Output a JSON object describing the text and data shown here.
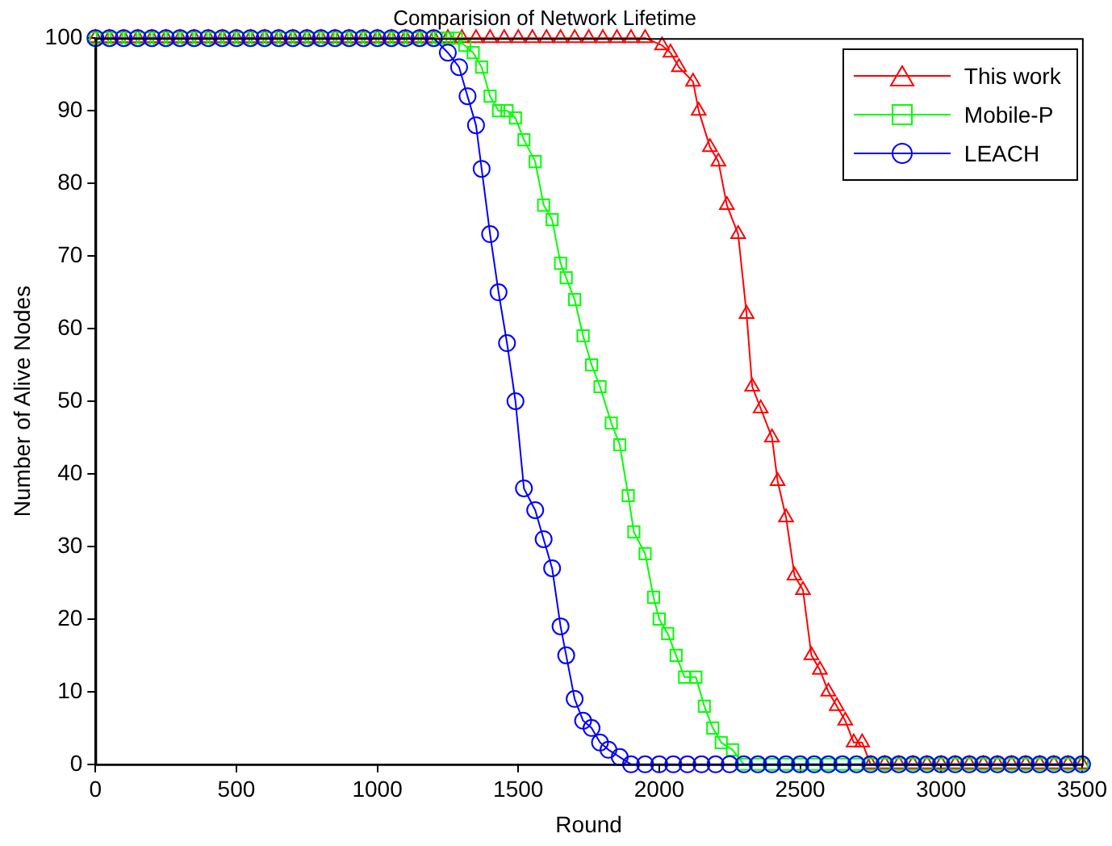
{
  "chart_data": {
    "type": "line",
    "title": "Comparision of Network Lifetime",
    "xlabel": "Round",
    "ylabel": "Number of Alive Nodes",
    "xlim": [
      0,
      3500
    ],
    "xticks": [
      0,
      500,
      1000,
      1500,
      2000,
      2500,
      3000,
      3500
    ],
    "ylim": [
      0,
      100
    ],
    "yticks": [
      0,
      10,
      20,
      30,
      40,
      50,
      60,
      70,
      80,
      90,
      100
    ],
    "grid": false,
    "legend": "top right",
    "line_style": "solid",
    "series": [
      {
        "name": "This work",
        "color": "#ff0000",
        "marker": "triangle",
        "x": [
          0,
          50,
          100,
          150,
          200,
          250,
          300,
          350,
          400,
          450,
          500,
          550,
          600,
          650,
          700,
          750,
          800,
          850,
          900,
          950,
          1000,
          1050,
          1100,
          1150,
          1200,
          1250,
          1300,
          1350,
          1400,
          1450,
          1500,
          1550,
          1600,
          1650,
          1700,
          1750,
          1800,
          1850,
          1900,
          1950,
          2010,
          2040,
          2070,
          2120,
          2140,
          2180,
          2210,
          2240,
          2280,
          2310,
          2330,
          2360,
          2400,
          2420,
          2450,
          2480,
          2510,
          2540,
          2570,
          2600,
          2630,
          2660,
          2690,
          2720,
          2750,
          2800,
          2850,
          2900,
          2950,
          3000,
          3050,
          3100,
          3150,
          3200,
          3250,
          3300,
          3350,
          3400,
          3450,
          3500
        ],
        "values": [
          100,
          100,
          100,
          100,
          100,
          100,
          100,
          100,
          100,
          100,
          100,
          100,
          100,
          100,
          100,
          100,
          100,
          100,
          100,
          100,
          100,
          100,
          100,
          100,
          100,
          100,
          100,
          100,
          100,
          100,
          100,
          100,
          100,
          100,
          100,
          100,
          100,
          100,
          100,
          100,
          99,
          98,
          96,
          94,
          90,
          85,
          83,
          77,
          73,
          62,
          52,
          49,
          45,
          39,
          34,
          26,
          24,
          15,
          13,
          10,
          8,
          6,
          3,
          3,
          0,
          0,
          0,
          0,
          0,
          0,
          0,
          0,
          0,
          0,
          0,
          0,
          0,
          0,
          0,
          0
        ]
      },
      {
        "name": "Mobile-P",
        "color": "#00ff00",
        "marker": "square",
        "x": [
          0,
          25,
          75,
          125,
          175,
          225,
          275,
          325,
          375,
          425,
          475,
          525,
          575,
          625,
          675,
          725,
          775,
          825,
          875,
          925,
          975,
          1025,
          1075,
          1125,
          1175,
          1225,
          1250,
          1280,
          1310,
          1340,
          1370,
          1400,
          1430,
          1460,
          1490,
          1520,
          1560,
          1590,
          1620,
          1650,
          1670,
          1700,
          1730,
          1760,
          1790,
          1830,
          1860,
          1890,
          1910,
          1950,
          1980,
          2000,
          2030,
          2060,
          2090,
          2130,
          2160,
          2190,
          2220,
          2260,
          2300,
          2350,
          2400,
          2450,
          2500,
          2550,
          2600,
          2650,
          2700,
          2750,
          2800,
          2850,
          2900,
          2950,
          3000,
          3050,
          3100,
          3150,
          3200,
          3250,
          3300,
          3350,
          3400,
          3450,
          3500
        ],
        "values": [
          100,
          100,
          100,
          100,
          100,
          100,
          100,
          100,
          100,
          100,
          100,
          100,
          100,
          100,
          100,
          100,
          100,
          100,
          100,
          100,
          100,
          100,
          100,
          100,
          100,
          100,
          100,
          100,
          99,
          98,
          96,
          92,
          90,
          90,
          89,
          86,
          83,
          77,
          75,
          69,
          67,
          64,
          59,
          55,
          52,
          47,
          44,
          37,
          32,
          29,
          23,
          20,
          18,
          15,
          12,
          12,
          8,
          5,
          3,
          2,
          0,
          0,
          0,
          0,
          0,
          0,
          0,
          0,
          0,
          0,
          0,
          0,
          0,
          0,
          0,
          0,
          0,
          0,
          0,
          0,
          0,
          0,
          0,
          0,
          0
        ]
      },
      {
        "name": "LEACH",
        "color": "#0000ff",
        "marker": "circle",
        "x": [
          0,
          50,
          100,
          150,
          200,
          250,
          300,
          350,
          400,
          450,
          500,
          550,
          600,
          650,
          700,
          750,
          800,
          850,
          900,
          950,
          1000,
          1050,
          1100,
          1150,
          1200,
          1250,
          1290,
          1320,
          1350,
          1370,
          1400,
          1430,
          1460,
          1490,
          1520,
          1560,
          1590,
          1620,
          1650,
          1670,
          1700,
          1730,
          1760,
          1790,
          1820,
          1860,
          1900,
          1950,
          2000,
          2050,
          2100,
          2150,
          2200,
          2250,
          2300,
          2350,
          2400,
          2450,
          2500,
          2550,
          2600,
          2650,
          2700,
          2750,
          2800,
          2850,
          2900,
          2950,
          3000,
          3050,
          3100,
          3150,
          3200,
          3250,
          3300,
          3350,
          3400,
          3450,
          3500
        ],
        "values": [
          100,
          100,
          100,
          100,
          100,
          100,
          100,
          100,
          100,
          100,
          100,
          100,
          100,
          100,
          100,
          100,
          100,
          100,
          100,
          100,
          100,
          100,
          100,
          100,
          100,
          98,
          96,
          92,
          88,
          82,
          73,
          65,
          58,
          50,
          38,
          35,
          31,
          27,
          19,
          15,
          9,
          6,
          5,
          3,
          2,
          1,
          0,
          0,
          0,
          0,
          0,
          0,
          0,
          0,
          0,
          0,
          0,
          0,
          0,
          0,
          0,
          0,
          0,
          0,
          0,
          0,
          0,
          0,
          0,
          0,
          0,
          0,
          0,
          0,
          0,
          0,
          0,
          0,
          0
        ]
      }
    ]
  }
}
